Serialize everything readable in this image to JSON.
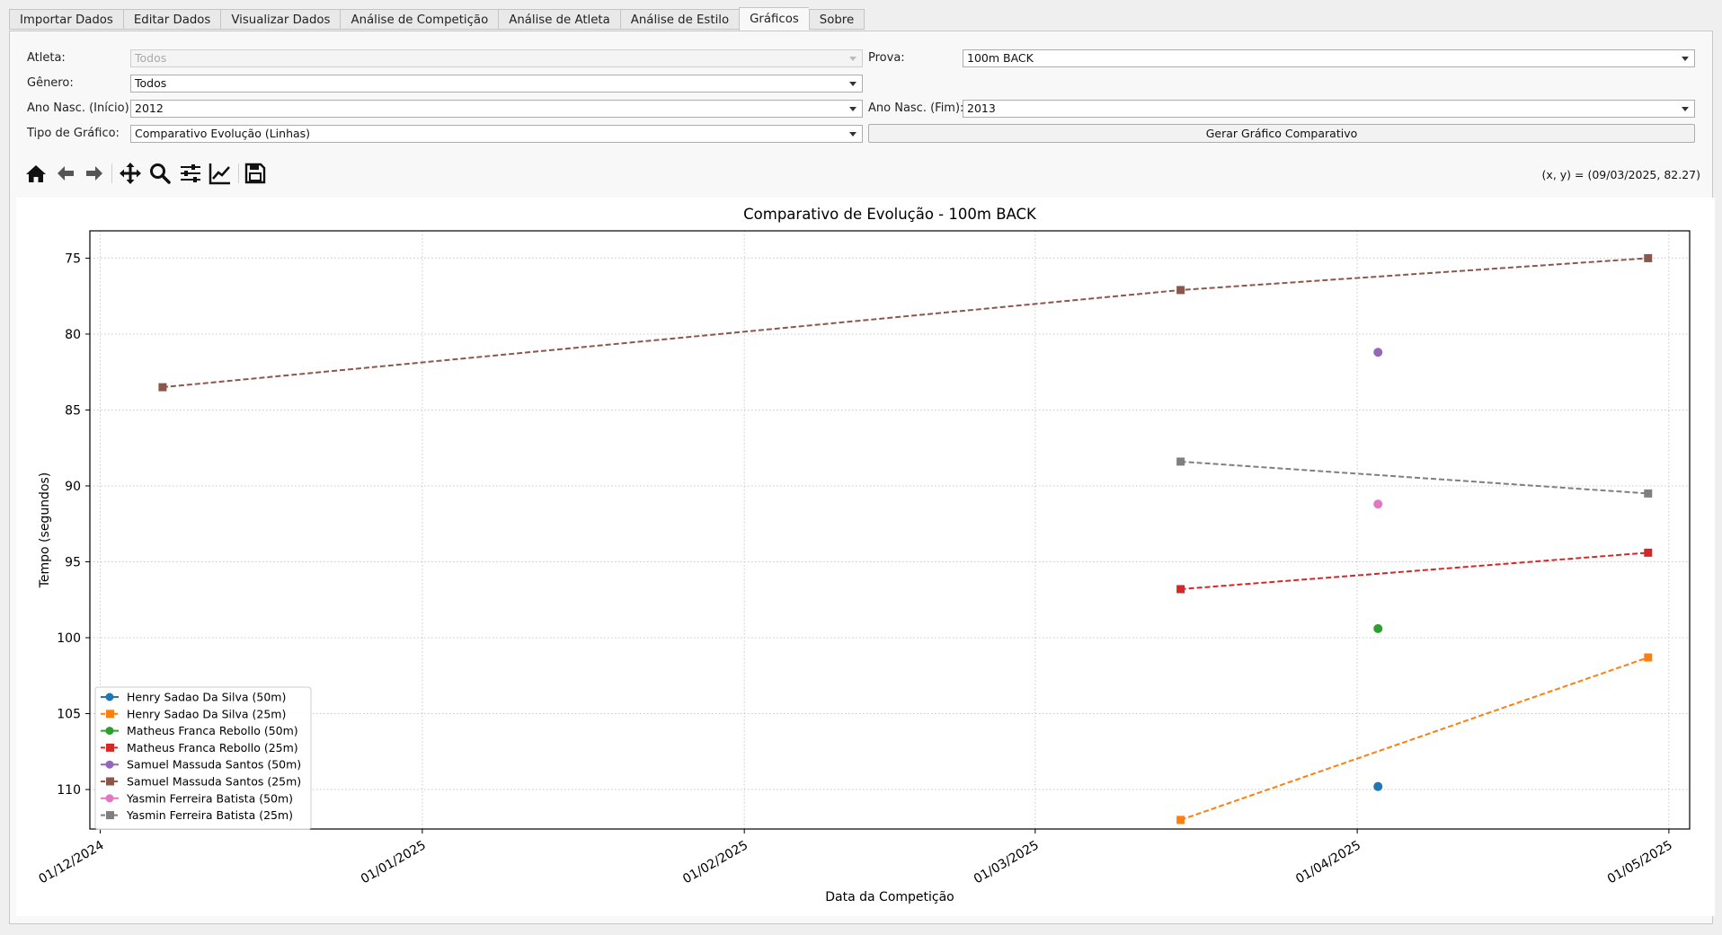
{
  "tabs": [
    {
      "label": "Importar Dados",
      "active": false
    },
    {
      "label": "Editar Dados",
      "active": false
    },
    {
      "label": "Visualizar Dados",
      "active": false
    },
    {
      "label": "Análise de Competição",
      "active": false
    },
    {
      "label": "Análise de Atleta",
      "active": false
    },
    {
      "label": "Análise de Estilo",
      "active": false
    },
    {
      "label": "Gráficos",
      "active": true
    },
    {
      "label": "Sobre",
      "active": false
    }
  ],
  "filters": {
    "athlete": {
      "label": "Atleta:",
      "value": "Todos",
      "disabled": true
    },
    "event": {
      "label": "Prova:",
      "value": "100m BACK"
    },
    "gender": {
      "label": "Gênero:",
      "value": "Todos"
    },
    "birth_start": {
      "label": "Ano Nasc. (Início):",
      "value": "2012"
    },
    "birth_end": {
      "label": "Ano Nasc. (Fim):",
      "value": "2013"
    },
    "chart_type": {
      "label": "Tipo de Gráfico:",
      "value": "Comparativo Evolução (Linhas)"
    },
    "generate_button": "Gerar Gráfico Comparativo"
  },
  "toolbar": {
    "icons": [
      "home-icon",
      "back-icon",
      "forward-icon",
      "pan-icon",
      "zoom-icon",
      "subplots-icon",
      "axes-icon",
      "save-icon"
    ],
    "coords": "(x, y) = (09/03/2025, 82.27)"
  },
  "chart_data": {
    "type": "line",
    "title": "Comparativo de Evolução - 100m BACK",
    "xlabel": "Data da Competição",
    "ylabel": "Tempo (segundos)",
    "x_ticks": [
      "01/12/2024",
      "01/01/2025",
      "01/02/2025",
      "01/03/2025",
      "01/04/2025",
      "01/05/2025"
    ],
    "xlim": [
      "2024-11-30",
      "2025-05-03"
    ],
    "y_ticks": [
      75,
      80,
      85,
      90,
      95,
      100,
      105,
      110
    ],
    "ylim": [
      112.6,
      73.2
    ],
    "y_inverted": true,
    "grid": true,
    "legend_position": "lower-left",
    "series": [
      {
        "name": "Henry Sadao Da Silva (50m)",
        "color": "#1f77b4",
        "marker": "circle",
        "line": false,
        "points": [
          [
            "2025-04-03",
            109.8
          ]
        ]
      },
      {
        "name": "Henry Sadao Da Silva (25m)",
        "color": "#ff7f0e",
        "marker": "square",
        "line": true,
        "points": [
          [
            "2025-03-15",
            112.0
          ],
          [
            "2025-04-29",
            101.3
          ]
        ]
      },
      {
        "name": "Matheus Franca Rebollo (50m)",
        "color": "#2ca02c",
        "marker": "circle",
        "line": false,
        "points": [
          [
            "2025-04-03",
            99.4
          ]
        ]
      },
      {
        "name": "Matheus Franca Rebollo (25m)",
        "color": "#d62728",
        "marker": "square",
        "line": true,
        "points": [
          [
            "2025-03-15",
            96.8
          ],
          [
            "2025-04-29",
            94.4
          ]
        ]
      },
      {
        "name": "Samuel Massuda Santos (50m)",
        "color": "#9467bd",
        "marker": "circle",
        "line": false,
        "points": [
          [
            "2025-04-03",
            81.2
          ]
        ]
      },
      {
        "name": "Samuel Massuda Santos (25m)",
        "color": "#8c564b",
        "marker": "square",
        "line": true,
        "points": [
          [
            "2024-12-07",
            83.5
          ],
          [
            "2025-03-15",
            77.1
          ],
          [
            "2025-04-29",
            75.0
          ]
        ]
      },
      {
        "name": "Yasmin Ferreira Batista (50m)",
        "color": "#e377c2",
        "marker": "circle",
        "line": false,
        "points": [
          [
            "2025-04-03",
            91.2
          ]
        ]
      },
      {
        "name": "Yasmin Ferreira Batista (25m)",
        "color": "#7f7f7f",
        "marker": "square",
        "line": true,
        "points": [
          [
            "2025-03-15",
            88.4
          ],
          [
            "2025-04-29",
            90.5
          ]
        ]
      }
    ]
  }
}
